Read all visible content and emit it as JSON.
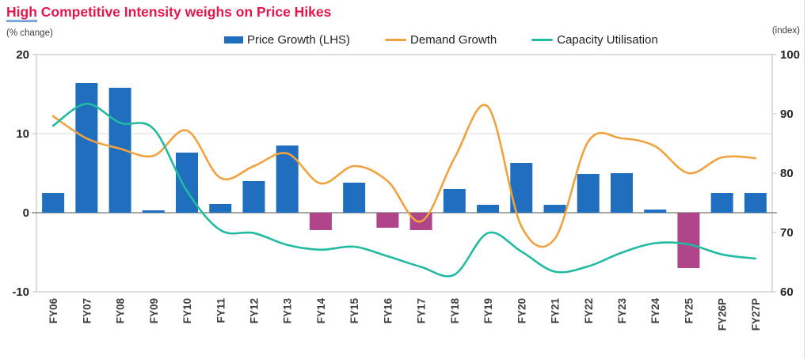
{
  "title": {
    "highlight": "High",
    "rest": " Competitive Intensity weighs on Price Hikes"
  },
  "captions": {
    "left": "(% change)",
    "right": "(index)"
  },
  "legend": [
    {
      "label": "Price Growth (LHS)",
      "marker": "bar-swatch"
    },
    {
      "label": "Demand Growth",
      "marker": "line-swatch"
    },
    {
      "label": "Capacity Utilisation",
      "marker": "line-swatch"
    }
  ],
  "colors": {
    "title_text": "#E3174E",
    "title_underline": "#3B77C2",
    "bar_positive": "#1F6FBE",
    "bar_negative": "#B04589",
    "demand_line": "#F0A23E",
    "capacity_line": "#22BBA2",
    "grid": "#D9D9D9",
    "zero_line": "#8C8C8C",
    "plot_border": "#C6C6C6",
    "tick_text": "#262626",
    "category_text": "#3F3F3F",
    "caption_text": "#3F3F3F"
  },
  "chart_data": {
    "type": "combo: bar + 2 smoothed lines",
    "title": "High Competitive Intensity weighs on Price Hikes",
    "legend_position": "top",
    "grid": "horizontal gridlines at left-axis 10 and 0 only",
    "categories": [
      "FY06",
      "FY07",
      "FY08",
      "FY09",
      "FY10",
      "FY11",
      "FY12",
      "FY13",
      "FY14",
      "FY15",
      "FY16",
      "FY17",
      "FY18",
      "FY19",
      "FY20",
      "FY21",
      "FY22",
      "FY23",
      "FY24",
      "FY25",
      "FY26P",
      "FY27P"
    ],
    "series": [
      {
        "name": "Price Growth (LHS)",
        "type": "bar",
        "axis": "left",
        "values": [
          2.5,
          16.4,
          15.8,
          0.3,
          7.6,
          1.1,
          4.0,
          8.5,
          -2.2,
          3.8,
          -1.9,
          -2.2,
          3.0,
          1.0,
          6.3,
          1.0,
          4.9,
          5.0,
          0.4,
          -7.0,
          2.5,
          2.5
        ],
        "note": "negative bars drawn in magenta"
      },
      {
        "name": "Demand Growth",
        "type": "line",
        "axis": "left",
        "values": [
          12.2,
          9.4,
          8.1,
          7.2,
          10.4,
          4.4,
          5.9,
          7.5,
          3.7,
          5.9,
          4.0,
          -1.1,
          6.9,
          13.4,
          -1.7,
          -3.3,
          9.0,
          9.4,
          8.4,
          5.0,
          7.0,
          6.9
        ]
      },
      {
        "name": "Capacity Utilisation",
        "type": "line",
        "axis": "right",
        "values": [
          88.0,
          91.7,
          88.5,
          87.5,
          77.0,
          70.4,
          69.9,
          67.9,
          67.1,
          67.6,
          66.0,
          64.2,
          62.9,
          69.9,
          66.8,
          63.4,
          64.3,
          66.6,
          68.2,
          68.0,
          66.3,
          65.6
        ]
      }
    ],
    "left_axis": {
      "caption": "(% change)",
      "min": -10,
      "max": 20,
      "ticks": [
        20,
        10,
        0,
        -10
      ]
    },
    "right_axis": {
      "caption": "(index)",
      "min": 60,
      "max": 100,
      "ticks": [
        100,
        90,
        80,
        70,
        60
      ]
    },
    "gridlines_left_values": [
      10,
      0
    ]
  }
}
